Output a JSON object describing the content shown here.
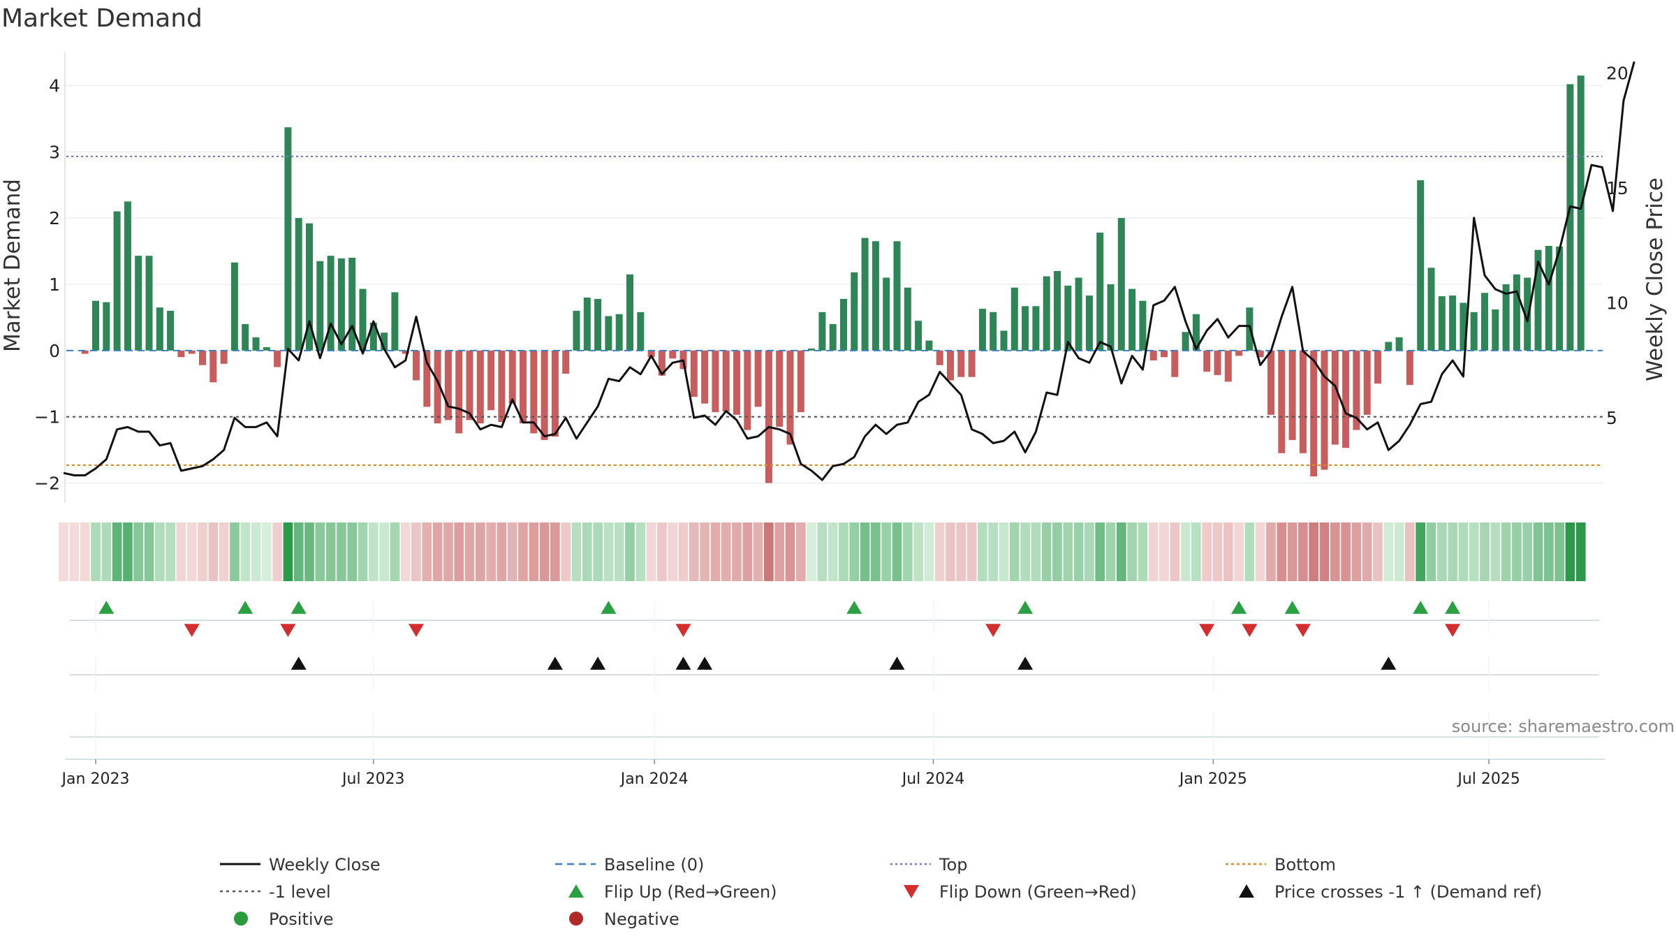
{
  "chart_data": {
    "type": "bar",
    "title": "Market Demand",
    "ylabel": "Market Demand",
    "y2label": "Weekly Close Price",
    "ylim": [
      -2.3,
      4.5
    ],
    "y2lim": [
      1.3,
      20.9
    ],
    "yticks": [
      -2,
      -1,
      0,
      1,
      2,
      3,
      4
    ],
    "yticklabels": [
      "−2",
      "−1",
      "0",
      "1",
      "2",
      "3",
      "4"
    ],
    "y2ticks": [
      5,
      10,
      15,
      20
    ],
    "y2ticklabels": [
      "5",
      "10",
      "15",
      "20"
    ],
    "x_start_week": -3,
    "week_count": 145,
    "xticks": [
      {
        "label": "Jan 2023",
        "week": 0
      },
      {
        "label": "Jul 2023",
        "week": 26
      },
      {
        "label": "Jan 2024",
        "week": 52.3
      },
      {
        "label": "Jul 2024",
        "week": 78.4
      },
      {
        "label": "Jan 2025",
        "week": 104.6
      },
      {
        "label": "Jul 2025",
        "week": 130.4
      }
    ],
    "reference_lines": [
      {
        "name": "Top",
        "value": 2.93,
        "color": "#7a74c9",
        "dash": "3,4"
      },
      {
        "name": "-1 level",
        "value": -1.0,
        "color": "#555555",
        "dash": "4,5"
      },
      {
        "name": "Bottom",
        "value": -1.73,
        "color": "#e08a1e",
        "dash": "4,4"
      },
      {
        "name": "Baseline (0)",
        "value": 0,
        "color": "#3a7fc0",
        "dash": "10,7"
      }
    ],
    "series": [
      {
        "name": "Market Demand",
        "axis": "left",
        "kind": "bar",
        "values": [
          0,
          0,
          -0.05,
          0.75,
          0.73,
          2.1,
          2.25,
          1.43,
          1.43,
          0.65,
          0.6,
          -0.1,
          -0.05,
          -0.22,
          -0.48,
          -0.2,
          1.33,
          0.4,
          0.2,
          0.05,
          -0.25,
          3.37,
          2.0,
          1.92,
          1.35,
          1.43,
          1.39,
          1.4,
          0.93,
          0.42,
          0.27,
          0.88,
          -0.05,
          -0.45,
          -0.85,
          -1.1,
          -1.05,
          -1.25,
          -1.05,
          -1.1,
          -0.9,
          -1.08,
          -0.8,
          -1.1,
          -1.25,
          -1.35,
          -1.3,
          -0.35,
          0.6,
          0.8,
          0.78,
          0.52,
          0.55,
          1.15,
          0.58,
          -0.1,
          -0.38,
          -0.12,
          -0.28,
          -0.7,
          -0.8,
          -0.93,
          -0.92,
          -0.97,
          -1.2,
          -0.85,
          -2.0,
          -1.15,
          -1.42,
          -0.93,
          0.03,
          0.58,
          0.4,
          0.78,
          1.18,
          1.7,
          1.65,
          1.1,
          1.65,
          0.95,
          0.45,
          0.15,
          -0.22,
          -0.45,
          -0.4,
          -0.4,
          0.63,
          0.58,
          0.3,
          0.95,
          0.67,
          0.67,
          1.12,
          1.2,
          0.98,
          1.1,
          0.83,
          1.78,
          1.0,
          2.0,
          0.93,
          0.75,
          -0.15,
          -0.1,
          -0.4,
          0.28,
          0.55,
          -0.32,
          -0.37,
          -0.47,
          -0.08,
          0.65,
          -0.1,
          -0.97,
          -1.55,
          -1.35,
          -1.55,
          -1.9,
          -1.8,
          -1.42,
          -1.47,
          -1.2,
          -0.97,
          -0.5,
          0.13,
          0.2,
          -0.52,
          2.57,
          1.25,
          0.82,
          0.83,
          0.72,
          0.58,
          0.87,
          0.62,
          1.0,
          1.15,
          1.1,
          1.52,
          1.58,
          1.57,
          4.02,
          4.15
        ]
      },
      {
        "name": "Weekly Close",
        "axis": "right",
        "kind": "line",
        "values": [
          2.6,
          2.5,
          2.5,
          2.8,
          3.2,
          4.5,
          4.6,
          4.4,
          4.4,
          3.8,
          3.9,
          2.7,
          2.8,
          2.9,
          3.2,
          3.6,
          5.0,
          4.6,
          4.6,
          4.8,
          4.2,
          8.0,
          7.5,
          9.2,
          7.6,
          9.1,
          8.2,
          9.0,
          7.8,
          9.2,
          8.0,
          7.2,
          7.5,
          9.4,
          7.4,
          6.6,
          5.5,
          5.4,
          5.2,
          4.5,
          4.7,
          4.6,
          5.8,
          4.8,
          4.8,
          4.2,
          4.3,
          5.0,
          4.1,
          4.8,
          5.5,
          6.7,
          6.6,
          7.2,
          6.9,
          7.7,
          6.9,
          7.4,
          7.5,
          5.0,
          5.1,
          4.7,
          5.3,
          4.9,
          4.1,
          4.2,
          4.6,
          4.5,
          4.3,
          3.0,
          2.7,
          2.3,
          2.9,
          3.0,
          3.3,
          4.2,
          4.7,
          4.3,
          4.7,
          4.8,
          5.7,
          6.0,
          7.0,
          6.5,
          6.0,
          4.5,
          4.3,
          3.9,
          4.0,
          4.4,
          3.5,
          4.4,
          6.1,
          6.0,
          8.3,
          7.6,
          7.4,
          8.3,
          8.1,
          6.5,
          7.7,
          7.1,
          9.9,
          10.1,
          10.7,
          9.2,
          8.0,
          8.8,
          9.3,
          8.5,
          9.0,
          9.0,
          7.3,
          7.9,
          9.4,
          10.7,
          7.9,
          7.5,
          6.8,
          6.4,
          5.2,
          5.0,
          4.5,
          4.8,
          3.6,
          4.0,
          4.7,
          5.6,
          5.7,
          6.9,
          7.5,
          6.8,
          13.7,
          11.2,
          10.6,
          10.4,
          10.5,
          9.2,
          11.8,
          10.8,
          12.3,
          14.2,
          14.1,
          16.0,
          15.9,
          14.0,
          18.8,
          20.5
        ]
      }
    ],
    "flip_up_weeks": [
      1,
      14,
      19,
      48,
      71,
      87,
      107,
      112,
      124,
      127
    ],
    "flip_down_weeks": [
      9,
      18,
      30,
      55,
      84,
      104,
      108,
      113,
      127
    ],
    "price_cross_weeks": [
      19,
      43,
      47,
      55,
      57,
      75,
      87,
      121
    ],
    "source_text": "source: sharemaestro.com",
    "legend": [
      {
        "label": "Weekly Close",
        "marker": "line",
        "color": "#111111",
        "dash": ""
      },
      {
        "label": "Baseline (0)",
        "marker": "line",
        "color": "#3a7fc0",
        "dash": "10,7"
      },
      {
        "label": "Top",
        "marker": "line",
        "color": "#7a74c9",
        "dash": "3,4"
      },
      {
        "label": "Bottom",
        "marker": "line",
        "color": "#e08a1e",
        "dash": "4,4"
      },
      {
        "label": "-1 level",
        "marker": "line",
        "color": "#555555",
        "dash": "4,5"
      },
      {
        "label": "Flip Up (Red→Green)",
        "marker": "triangle-up",
        "color": "#2aa042",
        "dash": ""
      },
      {
        "label": "Flip Down (Green→Red)",
        "marker": "triangle-down",
        "color": "#d32d2d",
        "dash": ""
      },
      {
        "label": "Price crosses -1 ↑ (Demand ref)",
        "marker": "triangle-up",
        "color": "#111111",
        "dash": ""
      },
      {
        "label": "Positive",
        "marker": "circle",
        "color": "#2a9a3a",
        "dash": ""
      },
      {
        "label": "Negative",
        "marker": "circle",
        "color": "#b02828",
        "dash": ""
      }
    ],
    "colors": {
      "positive_bar": "#2e8555",
      "negative_bar": "#c75d5d",
      "price_line": "#111111",
      "flip_up": "#2aa042",
      "flip_down": "#d32d2d",
      "price_cross": "#111111"
    }
  }
}
